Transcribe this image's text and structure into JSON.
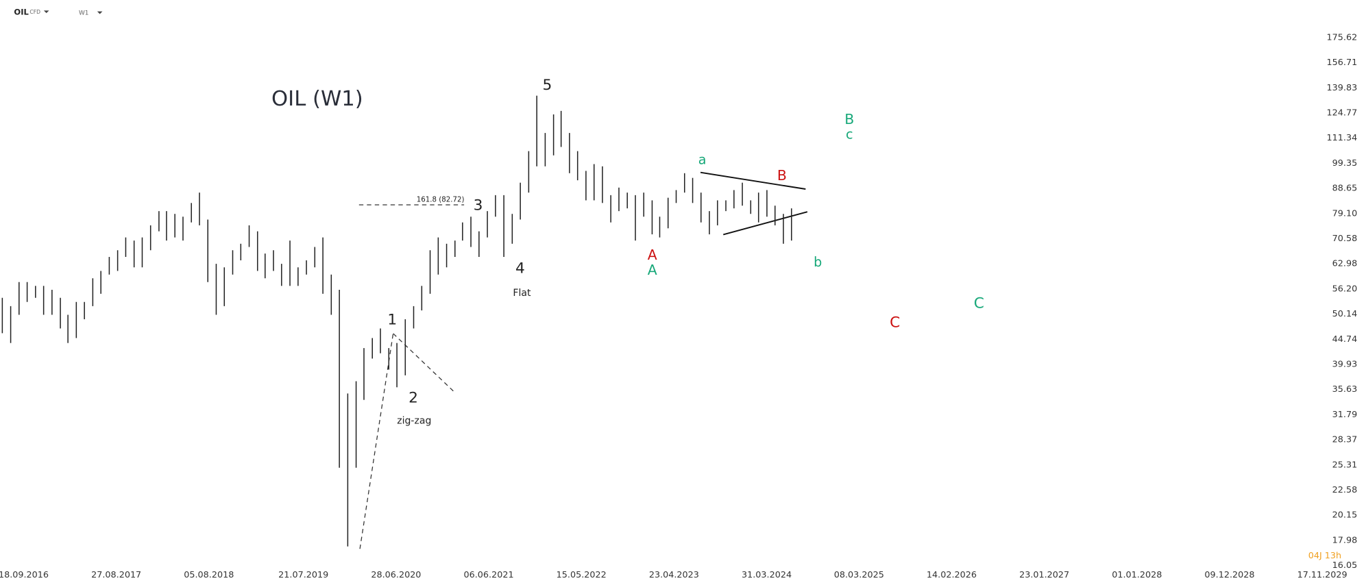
{
  "toolbar": {
    "symbol": "OIL",
    "kind": "CFD",
    "timeframe": "W1"
  },
  "countdown": "04J 13h",
  "chart_data": {
    "type": "ohlc",
    "title": "OIL (W1)",
    "log_scale": true,
    "color": "#222222",
    "ylim": [
      16.05,
      175.62
    ],
    "yticks": [
      175.62,
      156.71,
      139.83,
      124.77,
      111.34,
      99.35,
      88.65,
      {
        "value": 79.1,
        "label": "79.10"
      },
      70.58,
      62.98,
      {
        "value": 56.2,
        "label": "56.20"
      },
      50.14,
      44.74,
      39.93,
      35.63,
      31.79,
      28.37,
      25.31,
      22.58,
      20.15,
      17.98,
      16.05
    ],
    "xticks": [
      "18.09.2016",
      "27.08.2017",
      "05.08.2018",
      "21.07.2019",
      "28.06.2020",
      "06.06.2021",
      "15.05.2022",
      "23.04.2023",
      "31.03.2024",
      "08.03.2025",
      "14.02.2026",
      "23.01.2027",
      "01.01.2028",
      "09.12.2028",
      "17.11.2029"
    ],
    "x": [
      "01.07.2016",
      "01.08.2016",
      "01.09.2016",
      "01.10.2016",
      "01.11.2016",
      "01.12.2016",
      "01.01.2017",
      "01.02.2017",
      "01.03.2017",
      "01.04.2017",
      "01.05.2017",
      "01.06.2017",
      "01.07.2017",
      "01.08.2017",
      "01.09.2017",
      "01.10.2017",
      "01.11.2017",
      "01.12.2017",
      "01.01.2018",
      "01.02.2018",
      "01.03.2018",
      "01.04.2018",
      "01.05.2018",
      "01.06.2018",
      "01.07.2018",
      "01.08.2018",
      "01.09.2018",
      "01.10.2018",
      "01.11.2018",
      "01.12.2018",
      "01.01.2019",
      "01.02.2019",
      "01.03.2019",
      "01.04.2019",
      "01.05.2019",
      "01.06.2019",
      "01.07.2019",
      "01.08.2019",
      "01.09.2019",
      "01.10.2019",
      "01.11.2019",
      "01.12.2019",
      "01.01.2020",
      "01.02.2020",
      "01.03.2020",
      "01.04.2020",
      "01.05.2020",
      "01.06.2020",
      "01.07.2020",
      "01.08.2020",
      "01.09.2020",
      "01.10.2020",
      "01.11.2020",
      "01.12.2020",
      "01.01.2021",
      "01.02.2021",
      "01.03.2021",
      "01.04.2021",
      "01.05.2021",
      "01.06.2021",
      "01.07.2021",
      "01.08.2021",
      "01.09.2021",
      "01.10.2021",
      "01.11.2021",
      "01.12.2021",
      "01.01.2022",
      "01.02.2022",
      "01.03.2022",
      "01.04.2022",
      "01.05.2022",
      "01.06.2022",
      "01.07.2022",
      "01.08.2022",
      "01.09.2022",
      "01.10.2022",
      "01.11.2022",
      "01.12.2022",
      "01.01.2023",
      "01.02.2023",
      "01.03.2023",
      "01.04.2023",
      "01.05.2023",
      "01.06.2023",
      "01.07.2023",
      "01.08.2023",
      "01.09.2023",
      "01.10.2023",
      "01.11.2023",
      "01.12.2023",
      "01.01.2024",
      "01.02.2024",
      "01.03.2024",
      "01.04.2024",
      "01.05.2024",
      "01.06.2024",
      "01.07.2024"
    ],
    "low": [
      46,
      44,
      50,
      53,
      54,
      50,
      50,
      47,
      44,
      45,
      49,
      52,
      55,
      60,
      61,
      65,
      62,
      62,
      67,
      73,
      70,
      71,
      70,
      76,
      75,
      58,
      50,
      52,
      60,
      64,
      68,
      61,
      59,
      61,
      57,
      57,
      57,
      60,
      62,
      55,
      50,
      25,
      17.5,
      25,
      34,
      41,
      42,
      39,
      36,
      38,
      47,
      51,
      55,
      60,
      62,
      65,
      70,
      68,
      65,
      71,
      78,
      65,
      69,
      77,
      87,
      98,
      98,
      103,
      107,
      95,
      92,
      84,
      84,
      83,
      76,
      80,
      81,
      70,
      78,
      72,
      71,
      74,
      83,
      87,
      83,
      76,
      72,
      75,
      80,
      81,
      82,
      79,
      76,
      78,
      75,
      69,
      70
    ],
    "high": [
      54,
      52,
      58,
      58,
      57,
      57,
      56,
      54,
      50,
      53,
      53,
      59,
      61,
      65,
      67,
      71,
      70,
      71,
      75,
      80,
      80,
      79,
      78,
      83,
      87,
      77,
      63,
      62,
      67,
      69,
      75,
      73,
      66,
      67,
      63,
      70,
      62,
      64,
      68,
      71,
      60,
      56,
      35,
      37,
      43,
      45,
      47,
      43,
      44,
      49,
      52,
      57,
      67,
      71,
      69,
      70,
      76,
      78,
      73,
      80,
      86,
      86,
      79,
      91,
      105,
      135,
      114,
      124,
      126,
      114,
      105,
      96,
      99,
      98,
      86,
      89,
      87,
      86,
      87,
      84,
      78,
      85,
      88,
      95,
      93,
      87,
      80,
      84,
      84,
      88,
      91,
      84,
      87,
      88,
      82,
      79,
      81
    ],
    "annotations": [
      "1",
      "2",
      "3",
      "4",
      "5",
      "zig-zag",
      "Flat",
      "161.8 (82.72)",
      "A",
      "A",
      "a",
      "B",
      "b",
      "B",
      "c",
      "C",
      "C"
    ]
  }
}
